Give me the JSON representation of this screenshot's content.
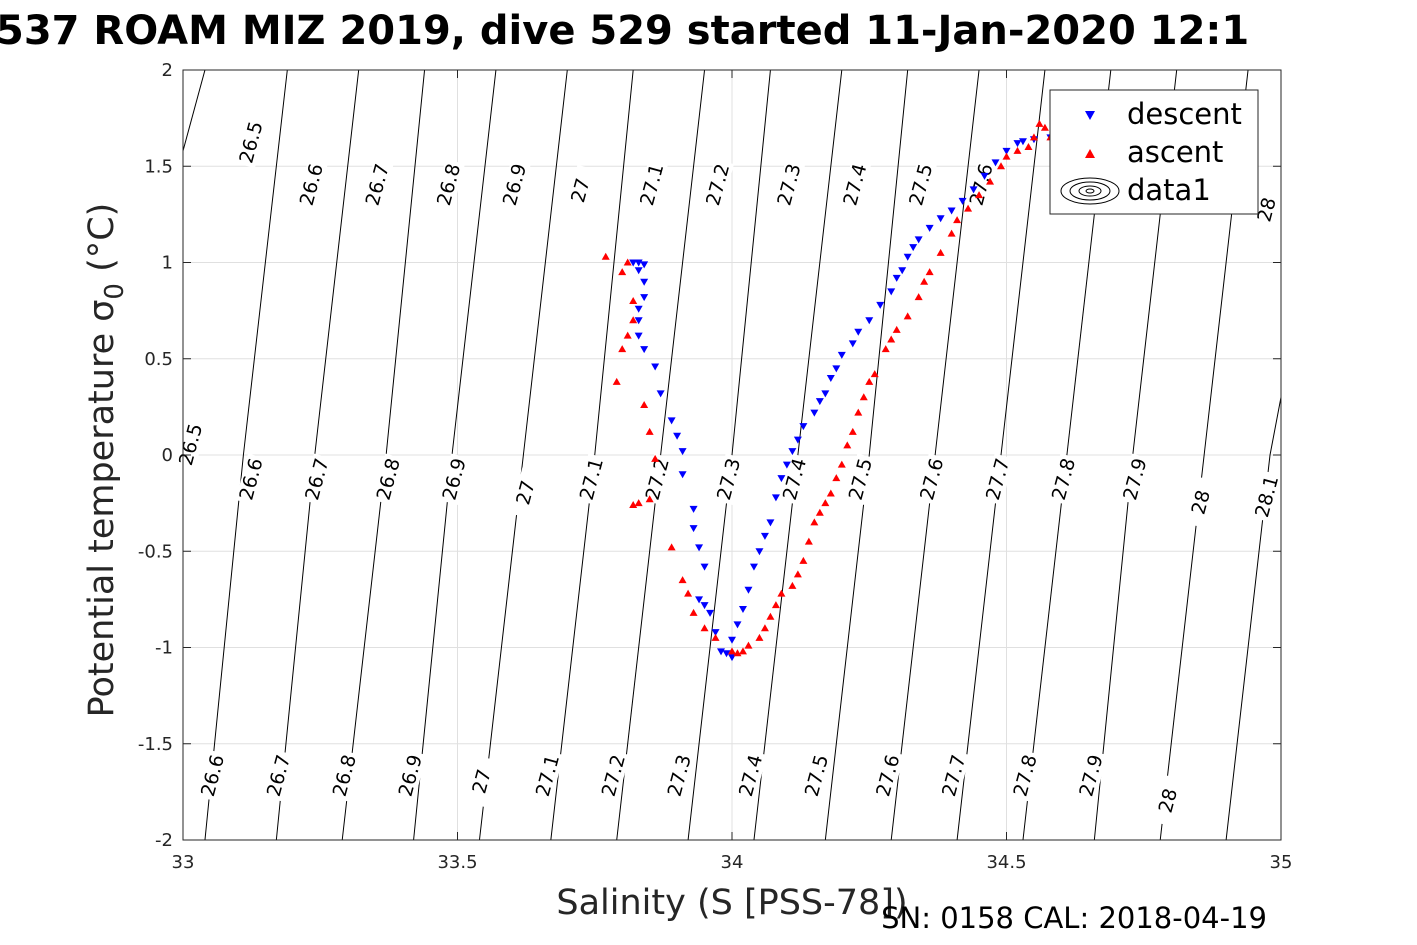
{
  "title": "537 ROAM MIZ 2019, dive 529 started 11-Jan-2020 12:1",
  "footer": "SN: 0158  CAL: 2018-04-19",
  "chart_data": {
    "type": "scatter",
    "xlabel": "Salinity (S [PSS-78])",
    "ylabel": "Potential temperature σ",
    "ylabel_subscript": "0",
    "ylabel_unit": " (°C)",
    "xlim": [
      33,
      35
    ],
    "ylim": [
      -2,
      2
    ],
    "xticks": [
      "33",
      "33.5",
      "34",
      "34.5",
      "35"
    ],
    "yticks": [
      "2",
      "1.5",
      "1",
      "0.5",
      "0",
      "-0.5",
      "-1",
      "-1.5",
      "-2"
    ],
    "grid": true,
    "legend_position": "top-right",
    "legend": [
      "descent",
      "ascent",
      "data1"
    ],
    "colors": {
      "descent": "#0000ff",
      "ascent": "#ff0000",
      "contour": "#000000",
      "grid": "#e0e0e0"
    },
    "density_contours": [
      {
        "label": "26.5",
        "points": [
          [
            33.0,
            1.58
          ],
          [
            33.04,
            2.0
          ]
        ]
      },
      {
        "label": "26.6",
        "points": [
          [
            33.04,
            -2.0
          ],
          [
            33.11,
            0.0
          ],
          [
            33.19,
            2.0
          ]
        ]
      },
      {
        "label": "26.7",
        "points": [
          [
            33.17,
            -2.0
          ],
          [
            33.24,
            0.0
          ],
          [
            33.32,
            2.0
          ]
        ]
      },
      {
        "label": "26.8",
        "points": [
          [
            33.29,
            -2.0
          ],
          [
            33.37,
            0.0
          ],
          [
            33.44,
            2.0
          ]
        ]
      },
      {
        "label": "26.9",
        "points": [
          [
            33.42,
            -2.0
          ],
          [
            33.49,
            0.0
          ],
          [
            33.57,
            2.0
          ]
        ]
      },
      {
        "label": "27",
        "points": [
          [
            33.54,
            -2.0
          ],
          [
            33.62,
            0.0
          ],
          [
            33.7,
            2.0
          ]
        ]
      },
      {
        "label": "27.1",
        "points": [
          [
            33.67,
            -2.0
          ],
          [
            33.75,
            0.0
          ],
          [
            33.82,
            2.0
          ]
        ]
      },
      {
        "label": "27.2",
        "points": [
          [
            33.79,
            -2.0
          ],
          [
            33.87,
            0.0
          ],
          [
            33.95,
            2.0
          ]
        ]
      },
      {
        "label": "27.3",
        "points": [
          [
            33.92,
            -2.0
          ],
          [
            34.0,
            0.0
          ],
          [
            34.07,
            2.0
          ]
        ]
      },
      {
        "label": "27.4",
        "points": [
          [
            34.04,
            -2.0
          ],
          [
            34.12,
            0.0
          ],
          [
            34.2,
            2.0
          ]
        ]
      },
      {
        "label": "27.5",
        "points": [
          [
            34.17,
            -2.0
          ],
          [
            34.25,
            0.0
          ],
          [
            34.32,
            2.0
          ]
        ]
      },
      {
        "label": "27.6",
        "points": [
          [
            34.29,
            -2.0
          ],
          [
            34.37,
            0.0
          ],
          [
            34.45,
            2.0
          ]
        ]
      },
      {
        "label": "27.7",
        "points": [
          [
            34.41,
            -2.0
          ],
          [
            34.49,
            0.0
          ],
          [
            34.57,
            2.0
          ]
        ]
      },
      {
        "label": "27.8",
        "points": [
          [
            34.53,
            -2.0
          ],
          [
            34.61,
            0.0
          ],
          [
            34.69,
            2.0
          ]
        ]
      },
      {
        "label": "27.9",
        "points": [
          [
            34.66,
            -2.0
          ],
          [
            34.73,
            0.0
          ],
          [
            34.81,
            2.0
          ]
        ]
      },
      {
        "label": "28",
        "points": [
          [
            34.78,
            -2.0
          ],
          [
            34.86,
            0.0
          ],
          [
            34.94,
            2.0
          ]
        ]
      },
      {
        "label": "28.1",
        "points": [
          [
            34.9,
            -2.0
          ],
          [
            34.98,
            0.0
          ],
          [
            35.0,
            0.3
          ]
        ]
      }
    ],
    "contour_labels": [
      {
        "text": "26.5",
        "x": 33.02,
        "y": 0.05
      },
      {
        "text": "26.5",
        "x": 33.13,
        "y": 1.62
      },
      {
        "text": "26.6",
        "x": 33.13,
        "y": -0.13
      },
      {
        "text": "26.6",
        "x": 33.24,
        "y": 1.4
      },
      {
        "text": "26.6",
        "x": 33.06,
        "y": -1.67
      },
      {
        "text": "26.7",
        "x": 33.25,
        "y": -0.13
      },
      {
        "text": "26.7",
        "x": 33.36,
        "y": 1.4
      },
      {
        "text": "26.7",
        "x": 33.18,
        "y": -1.67
      },
      {
        "text": "26.8",
        "x": 33.38,
        "y": -0.13
      },
      {
        "text": "26.8",
        "x": 33.49,
        "y": 1.4
      },
      {
        "text": "26.8",
        "x": 33.3,
        "y": -1.67
      },
      {
        "text": "26.9",
        "x": 33.5,
        "y": -0.13
      },
      {
        "text": "26.9",
        "x": 33.61,
        "y": 1.4
      },
      {
        "text": "26.9",
        "x": 33.42,
        "y": -1.67
      },
      {
        "text": "27",
        "x": 33.63,
        "y": -0.2
      },
      {
        "text": "27",
        "x": 33.73,
        "y": 1.37
      },
      {
        "text": "27",
        "x": 33.55,
        "y": -1.7
      },
      {
        "text": "27.1",
        "x": 33.75,
        "y": -0.13
      },
      {
        "text": "27.1",
        "x": 33.86,
        "y": 1.4
      },
      {
        "text": "27.1",
        "x": 33.67,
        "y": -1.67
      },
      {
        "text": "27.2",
        "x": 33.87,
        "y": -0.13
      },
      {
        "text": "27.2",
        "x": 33.98,
        "y": 1.4
      },
      {
        "text": "27.2",
        "x": 33.79,
        "y": -1.67
      },
      {
        "text": "27.3",
        "x": 34.0,
        "y": -0.13
      },
      {
        "text": "27.3",
        "x": 34.11,
        "y": 1.4
      },
      {
        "text": "27.3",
        "x": 33.91,
        "y": -1.67
      },
      {
        "text": "27.4",
        "x": 34.12,
        "y": -0.13
      },
      {
        "text": "27.4",
        "x": 34.23,
        "y": 1.4
      },
      {
        "text": "27.4",
        "x": 34.04,
        "y": -1.67
      },
      {
        "text": "27.5",
        "x": 34.24,
        "y": -0.13
      },
      {
        "text": "27.5",
        "x": 34.35,
        "y": 1.4
      },
      {
        "text": "27.5",
        "x": 34.16,
        "y": -1.67
      },
      {
        "text": "27.6",
        "x": 34.37,
        "y": -0.13
      },
      {
        "text": "27.6",
        "x": 34.46,
        "y": 1.4
      },
      {
        "text": "27.6",
        "x": 34.29,
        "y": -1.67
      },
      {
        "text": "27.7",
        "x": 34.49,
        "y": -0.13
      },
      {
        "text": "27.7",
        "x": 34.41,
        "y": -1.67
      },
      {
        "text": "27.8",
        "x": 34.61,
        "y": -0.13
      },
      {
        "text": "27.8",
        "x": 34.54,
        "y": -1.67
      },
      {
        "text": "27.9",
        "x": 34.74,
        "y": -0.13
      },
      {
        "text": "27.9",
        "x": 34.66,
        "y": -1.67
      },
      {
        "text": "28",
        "x": 34.86,
        "y": -0.25
      },
      {
        "text": "28",
        "x": 34.8,
        "y": -1.8
      },
      {
        "text": "28",
        "x": 34.98,
        "y": 1.27
      },
      {
        "text": "28.1",
        "x": 34.98,
        "y": -0.22
      }
    ],
    "series": [
      {
        "name": "descent",
        "marker": "triangle-down",
        "points": [
          [
            34.62,
            1.72
          ],
          [
            34.61,
            1.7
          ],
          [
            34.6,
            1.68
          ],
          [
            34.58,
            1.65
          ],
          [
            34.55,
            1.64
          ],
          [
            34.53,
            1.63
          ],
          [
            34.52,
            1.62
          ],
          [
            34.5,
            1.58
          ],
          [
            34.48,
            1.52
          ],
          [
            34.46,
            1.45
          ],
          [
            34.44,
            1.38
          ],
          [
            34.42,
            1.32
          ],
          [
            34.4,
            1.27
          ],
          [
            34.38,
            1.23
          ],
          [
            34.36,
            1.18
          ],
          [
            34.34,
            1.12
          ],
          [
            34.33,
            1.08
          ],
          [
            34.32,
            1.03
          ],
          [
            34.31,
            0.96
          ],
          [
            34.3,
            0.92
          ],
          [
            34.29,
            0.85
          ],
          [
            34.27,
            0.78
          ],
          [
            34.25,
            0.7
          ],
          [
            34.23,
            0.64
          ],
          [
            34.22,
            0.58
          ],
          [
            34.2,
            0.52
          ],
          [
            34.19,
            0.45
          ],
          [
            34.18,
            0.4
          ],
          [
            34.17,
            0.32
          ],
          [
            34.16,
            0.28
          ],
          [
            34.15,
            0.22
          ],
          [
            34.13,
            0.15
          ],
          [
            34.12,
            0.08
          ],
          [
            34.11,
            0.02
          ],
          [
            34.1,
            -0.05
          ],
          [
            34.09,
            -0.12
          ],
          [
            34.08,
            -0.22
          ],
          [
            34.07,
            -0.35
          ],
          [
            34.06,
            -0.42
          ],
          [
            34.05,
            -0.5
          ],
          [
            34.04,
            -0.58
          ],
          [
            34.03,
            -0.7
          ],
          [
            34.02,
            -0.8
          ],
          [
            34.01,
            -0.88
          ],
          [
            34.0,
            -0.96
          ],
          [
            33.99,
            -1.03
          ],
          [
            34.0,
            -1.05
          ],
          [
            33.98,
            -1.02
          ],
          [
            33.97,
            -0.92
          ],
          [
            33.96,
            -0.82
          ],
          [
            33.95,
            -0.78
          ],
          [
            33.94,
            -0.75
          ],
          [
            33.95,
            -0.58
          ],
          [
            33.94,
            -0.48
          ],
          [
            33.93,
            -0.38
          ],
          [
            33.93,
            -0.28
          ],
          [
            33.91,
            -0.1
          ],
          [
            33.91,
            0.02
          ],
          [
            33.9,
            0.1
          ],
          [
            33.89,
            0.18
          ],
          [
            33.87,
            0.32
          ],
          [
            33.86,
            0.46
          ],
          [
            33.84,
            0.55
          ],
          [
            33.83,
            0.62
          ],
          [
            33.83,
            0.7
          ],
          [
            33.83,
            0.76
          ],
          [
            33.84,
            0.82
          ],
          [
            33.84,
            0.9
          ],
          [
            33.83,
            0.96
          ],
          [
            33.82,
            1.0
          ],
          [
            33.83,
            1.0
          ],
          [
            33.84,
            0.99
          ]
        ]
      },
      {
        "name": "ascent",
        "marker": "triangle-up",
        "points": [
          [
            34.63,
            1.63
          ],
          [
            34.62,
            1.6
          ],
          [
            34.6,
            1.61
          ],
          [
            34.58,
            1.65
          ],
          [
            34.57,
            1.7
          ],
          [
            34.56,
            1.72
          ],
          [
            34.55,
            1.65
          ],
          [
            34.54,
            1.6
          ],
          [
            34.52,
            1.58
          ],
          [
            34.5,
            1.55
          ],
          [
            34.49,
            1.5
          ],
          [
            34.47,
            1.42
          ],
          [
            34.45,
            1.35
          ],
          [
            34.43,
            1.28
          ],
          [
            34.41,
            1.22
          ],
          [
            34.4,
            1.15
          ],
          [
            34.38,
            1.05
          ],
          [
            34.36,
            0.95
          ],
          [
            34.35,
            0.9
          ],
          [
            34.34,
            0.82
          ],
          [
            34.32,
            0.72
          ],
          [
            34.3,
            0.65
          ],
          [
            34.29,
            0.6
          ],
          [
            34.28,
            0.55
          ],
          [
            34.26,
            0.42
          ],
          [
            34.25,
            0.38
          ],
          [
            34.24,
            0.3
          ],
          [
            34.23,
            0.22
          ],
          [
            34.22,
            0.12
          ],
          [
            34.21,
            0.05
          ],
          [
            34.2,
            -0.05
          ],
          [
            34.19,
            -0.12
          ],
          [
            34.18,
            -0.2
          ],
          [
            34.17,
            -0.25
          ],
          [
            34.16,
            -0.3
          ],
          [
            34.15,
            -0.35
          ],
          [
            34.14,
            -0.45
          ],
          [
            34.13,
            -0.55
          ],
          [
            34.12,
            -0.62
          ],
          [
            34.11,
            -0.68
          ],
          [
            34.09,
            -0.72
          ],
          [
            34.08,
            -0.78
          ],
          [
            34.07,
            -0.84
          ],
          [
            34.06,
            -0.9
          ],
          [
            34.05,
            -0.95
          ],
          [
            34.03,
            -0.99
          ],
          [
            34.02,
            -1.02
          ],
          [
            34.01,
            -1.03
          ],
          [
            34.0,
            -1.02
          ],
          [
            33.97,
            -0.95
          ],
          [
            33.95,
            -0.9
          ],
          [
            33.93,
            -0.82
          ],
          [
            33.92,
            -0.72
          ],
          [
            33.91,
            -0.65
          ],
          [
            33.89,
            -0.48
          ],
          [
            33.85,
            -0.23
          ],
          [
            33.83,
            -0.25
          ],
          [
            33.82,
            -0.26
          ],
          [
            33.86,
            -0.02
          ],
          [
            33.85,
            0.12
          ],
          [
            33.84,
            0.26
          ],
          [
            33.79,
            0.38
          ],
          [
            33.8,
            0.55
          ],
          [
            33.81,
            0.62
          ],
          [
            33.82,
            0.7
          ],
          [
            33.82,
            0.8
          ],
          [
            33.8,
            0.95
          ],
          [
            33.81,
            1.0
          ],
          [
            33.77,
            1.03
          ]
        ]
      }
    ]
  }
}
